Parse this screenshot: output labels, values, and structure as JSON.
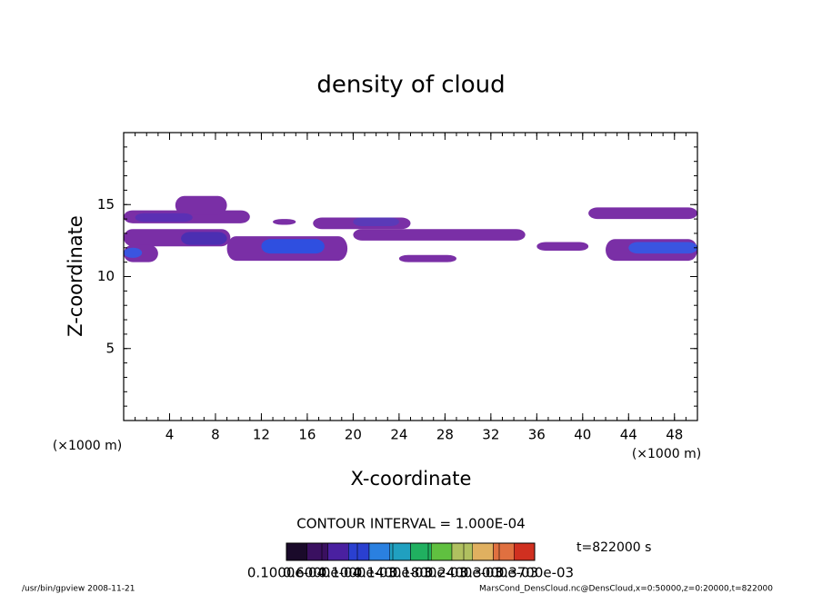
{
  "chart_data": {
    "type": "contour",
    "title": "density of cloud",
    "x_label": "X-coordinate",
    "y_label": "Z-coordinate",
    "x_unit": "(×1000 m)",
    "y_unit": "(×1000 m)",
    "xlim": [
      0,
      50
    ],
    "xticks": [
      4,
      8,
      12,
      16,
      20,
      24,
      28,
      32,
      36,
      40,
      44,
      48
    ],
    "ylim": [
      0,
      20
    ],
    "yticks": [
      5,
      10,
      15
    ],
    "regions": [
      {
        "x": [
          0,
          11
        ],
        "z": [
          13.7,
          14.6
        ],
        "value": 2e-05,
        "color": "#7a2fa6"
      },
      {
        "x": [
          4.5,
          9
        ],
        "z": [
          14.3,
          15.6
        ],
        "value": 2e-05,
        "color": "#7a2fa6"
      },
      {
        "x": [
          1,
          6
        ],
        "z": [
          13.8,
          14.4
        ],
        "value": 6e-05,
        "color": "#5b30b4"
      },
      {
        "x": [
          0,
          9.3
        ],
        "z": [
          12.1,
          13.3
        ],
        "value": 2e-05,
        "color": "#7a2fa6"
      },
      {
        "x": [
          5,
          9
        ],
        "z": [
          12.2,
          13.1
        ],
        "value": 6e-05,
        "color": "#4b2fb2"
      },
      {
        "x": [
          0,
          3
        ],
        "z": [
          11,
          12.2
        ],
        "value": 2e-05,
        "color": "#7a2fa6"
      },
      {
        "x": [
          0,
          1.6
        ],
        "z": [
          11.3,
          12
        ],
        "value": 0.0001,
        "color": "#3a55e0"
      },
      {
        "x": [
          9,
          19.5
        ],
        "z": [
          11.1,
          12.8
        ],
        "value": 2e-05,
        "color": "#7a2fa6"
      },
      {
        "x": [
          12,
          17.5
        ],
        "z": [
          11.6,
          12.6
        ],
        "value": 0.0001,
        "color": "#2f4fe0"
      },
      {
        "x": [
          13,
          15
        ],
        "z": [
          13.6,
          14
        ],
        "value": 2e-05,
        "color": "#7a2fa6"
      },
      {
        "x": [
          16.5,
          25
        ],
        "z": [
          13.3,
          14.1
        ],
        "value": 2e-05,
        "color": "#7a2fa6"
      },
      {
        "x": [
          20,
          24
        ],
        "z": [
          13.5,
          14.1
        ],
        "value": 6e-05,
        "color": "#5a3ab8"
      },
      {
        "x": [
          20,
          35
        ],
        "z": [
          12.5,
          13.3
        ],
        "value": 2e-05,
        "color": "#7a2fa6"
      },
      {
        "x": [
          24,
          29
        ],
        "z": [
          11,
          11.5
        ],
        "value": 2e-05,
        "color": "#7a2fa6"
      },
      {
        "x": [
          36,
          40.5
        ],
        "z": [
          11.8,
          12.4
        ],
        "value": 2e-05,
        "color": "#7a2fa6"
      },
      {
        "x": [
          42,
          50
        ],
        "z": [
          11.1,
          12.6
        ],
        "value": 2e-05,
        "color": "#7a2fa6"
      },
      {
        "x": [
          44,
          50
        ],
        "z": [
          11.6,
          12.4
        ],
        "value": 0.0001,
        "color": "#3a55e0"
      },
      {
        "x": [
          40.5,
          50
        ],
        "z": [
          14,
          14.8
        ],
        "value": 2e-05,
        "color": "#7a2fa6"
      }
    ],
    "contour_interval": "CONTOUR INTERVAL = 1.000E-04",
    "time_label": "t=822000 s",
    "colorbar": {
      "colors": [
        "#1a0a2a",
        "#3a1060",
        "#4a20a0",
        "#2a40d0",
        "#2a80e0",
        "#20a0c0",
        "#20b060",
        "#60c040",
        "#b0c060",
        "#e0b060",
        "#e07040",
        "#d03020"
      ],
      "levels": [
        {
          "value": 1e-05,
          "label": "0.1000e-04"
        },
        {
          "value": 6e-05,
          "label": "0.6000e-04"
        },
        {
          "value": 0.0001,
          "label": "0.1000e-03"
        },
        {
          "value": 0.00014,
          "label": "0.1400e-03"
        },
        {
          "value": 0.00018,
          "label": "0.1800e-03"
        },
        {
          "value": 0.00024,
          "label": "0.2400e-03"
        },
        {
          "value": 0.0003,
          "label": "0.3000e-03"
        },
        {
          "value": 0.00037,
          "label": "0.3700e-03"
        }
      ]
    },
    "footer_left": "/usr/bin/gpview   2008-11-21",
    "footer_right": "MarsCond_DensCloud.nc@DensCloud,x=0:50000,z=0:20000,t=822000"
  }
}
